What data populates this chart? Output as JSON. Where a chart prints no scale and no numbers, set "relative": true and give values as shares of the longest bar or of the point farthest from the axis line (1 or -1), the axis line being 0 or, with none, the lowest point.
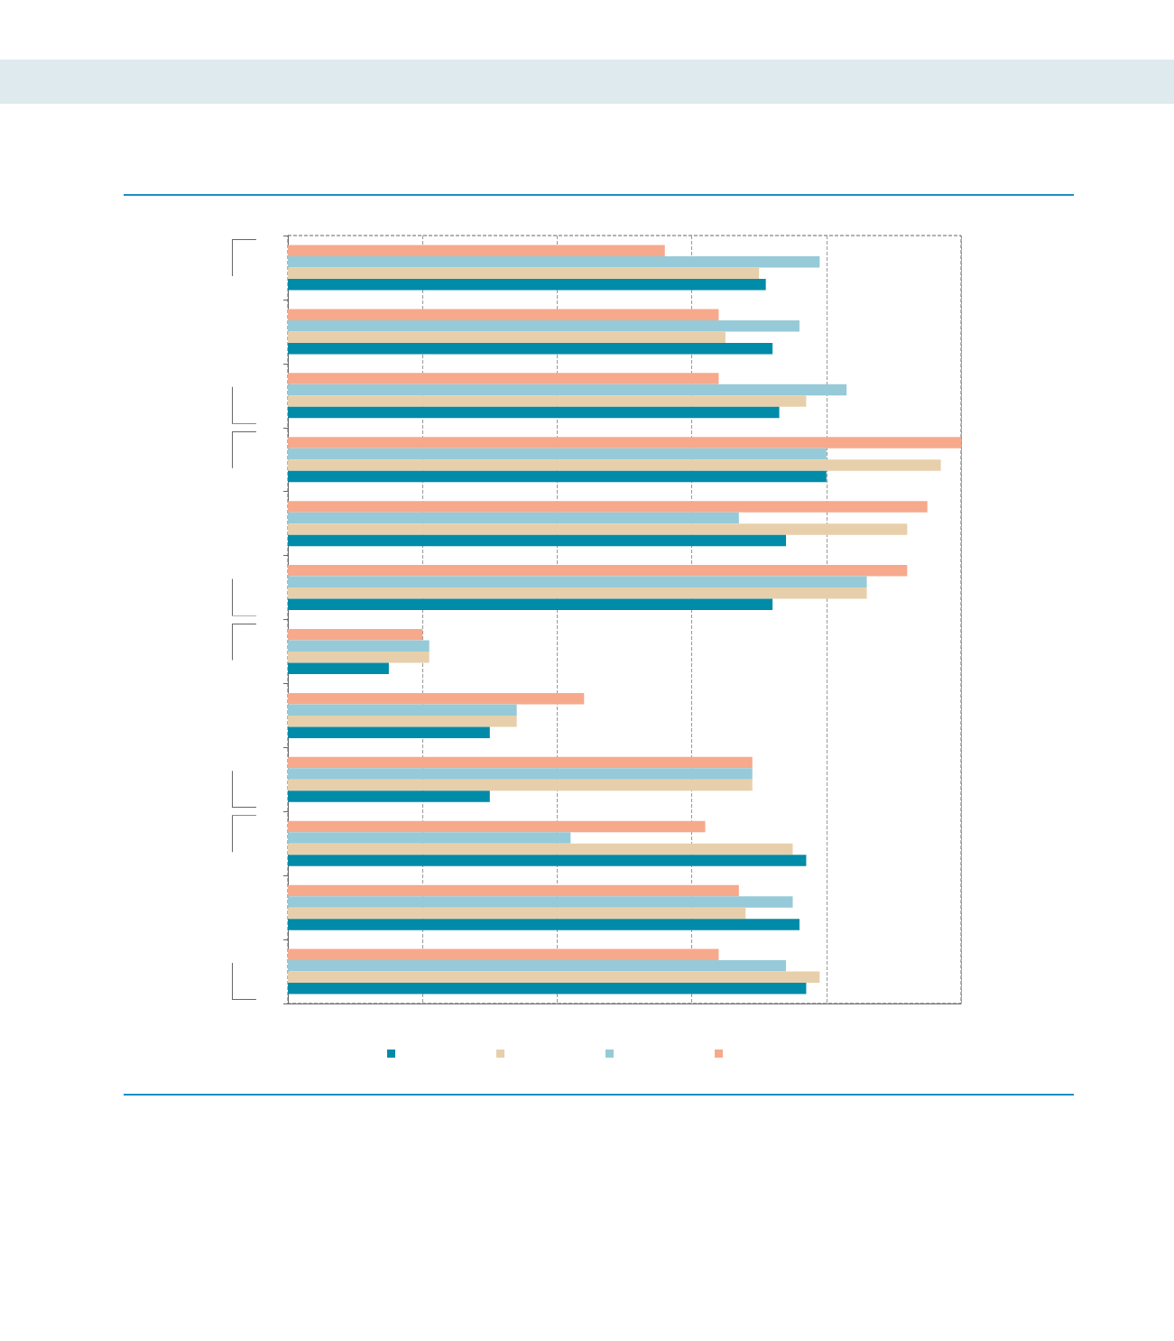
{
  "chart_data": {
    "type": "bar",
    "orientation": "horizontal",
    "relative": true,
    "grid": "x",
    "categories": [
      null,
      null,
      null,
      null,
      null,
      null,
      null,
      null,
      null,
      null,
      null,
      null
    ],
    "series": [
      {
        "color": "#f7a98c",
        "values": [
          0.56,
          0.64,
          0.64,
          1,
          0.95,
          0.92,
          0.2,
          0.44,
          0.69,
          0.62,
          0.67,
          0.64
        ]
      },
      {
        "color": "#96cad8",
        "values": [
          0.79,
          0.76,
          0.83,
          0.8,
          0.67,
          0.86,
          0.21,
          0.34,
          0.69,
          0.42,
          0.75,
          0.74
        ]
      },
      {
        "color": "#e8cfab",
        "values": [
          0.7,
          0.65,
          0.77,
          0.97,
          0.92,
          0.86,
          0.21,
          0.34,
          0.69,
          0.75,
          0.68,
          0.79
        ]
      },
      {
        "color": "#008ba8",
        "values": [
          0.71,
          0.72,
          0.73,
          0.8,
          0.74,
          0.72,
          0.15,
          0.3,
          0.3,
          0.77,
          0.76,
          0.77
        ]
      }
    ]
  }
}
